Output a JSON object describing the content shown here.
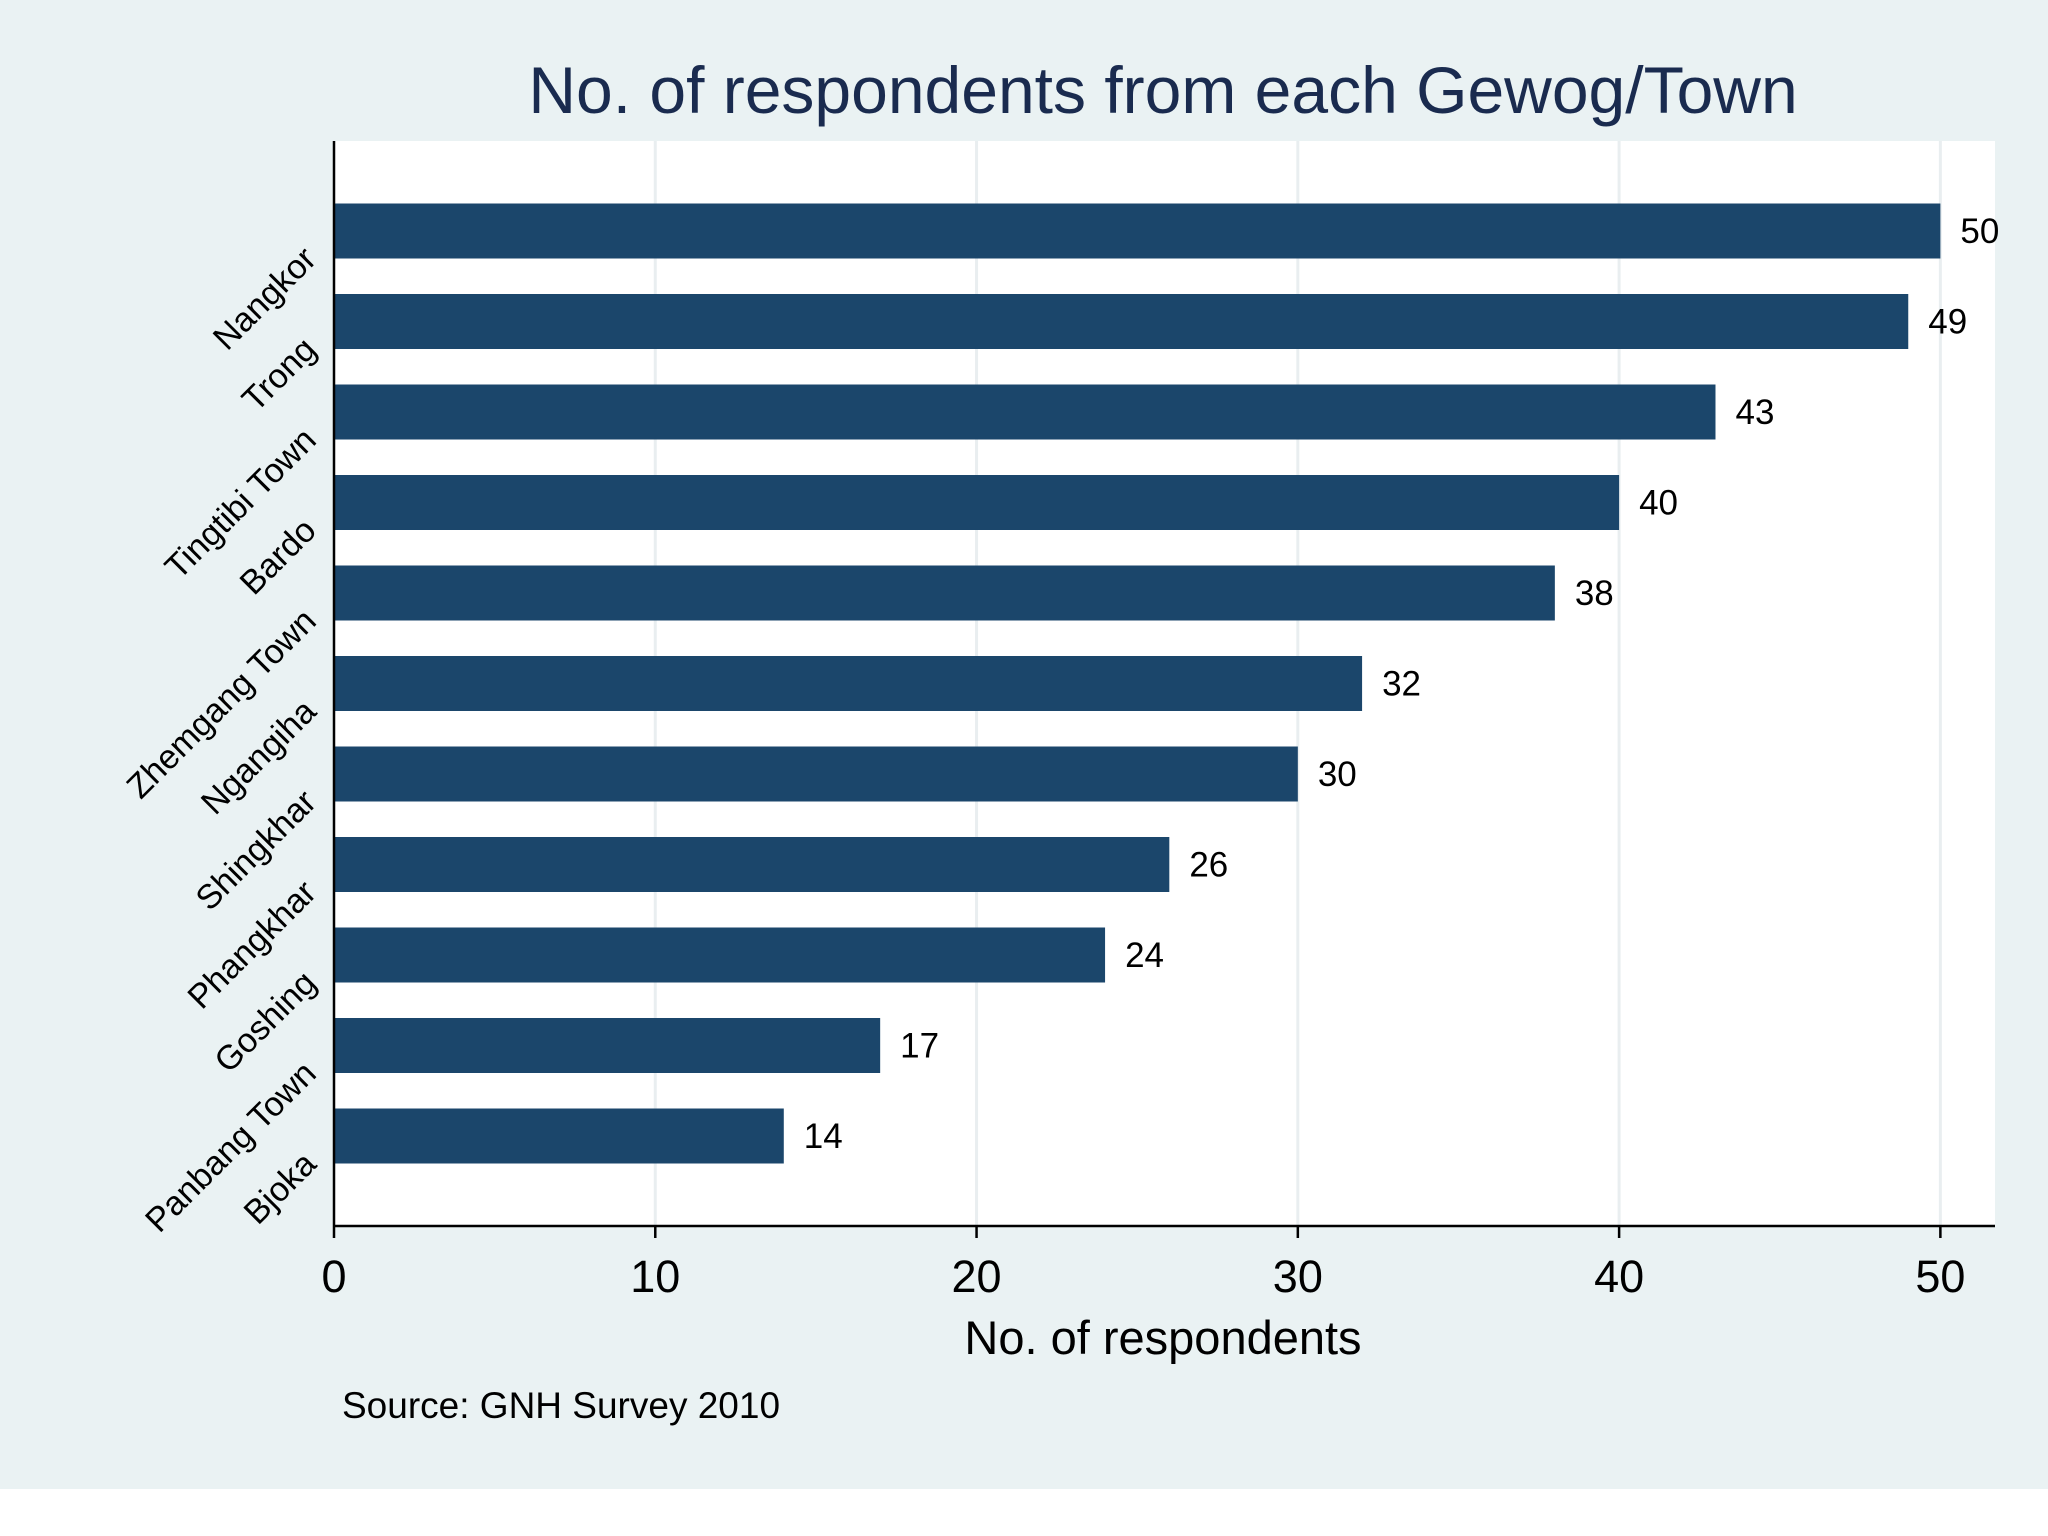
{
  "chart_data": {
    "type": "bar",
    "orientation": "horizontal",
    "title": "No. of respondents from each Gewog/Town",
    "xlabel": "No. of respondents",
    "ylabel": "",
    "note": "Source: GNH Survey 2010",
    "categories": [
      "Nangkor",
      "Trong",
      "Tingtibi Town",
      "Bardo",
      "Zhemgang Town",
      "Ngangiha",
      "Shingkhar",
      "Phangkhar",
      "Goshing",
      "Panbang Town",
      "Bjoka"
    ],
    "values": [
      50,
      49,
      43,
      40,
      38,
      32,
      30,
      26,
      24,
      17,
      14
    ],
    "data_labels": [
      "50",
      "49",
      "43",
      "40",
      "38",
      "32",
      "30",
      "26",
      "24",
      "17",
      "14"
    ],
    "xlim": [
      0,
      51.7
    ],
    "x_ticks": [
      0,
      10,
      20,
      30,
      40,
      50
    ],
    "x_tick_labels": [
      "0",
      "10",
      "20",
      "30",
      "40",
      "50"
    ],
    "grid": "vertical",
    "legend": "none",
    "colors": {
      "bar": "#1b466b",
      "title": "#1a2b4f",
      "figure_background": "#eaf2f3",
      "plot_background": "#ffffff",
      "grid": "#e9eef0",
      "axis": "#000000"
    }
  }
}
